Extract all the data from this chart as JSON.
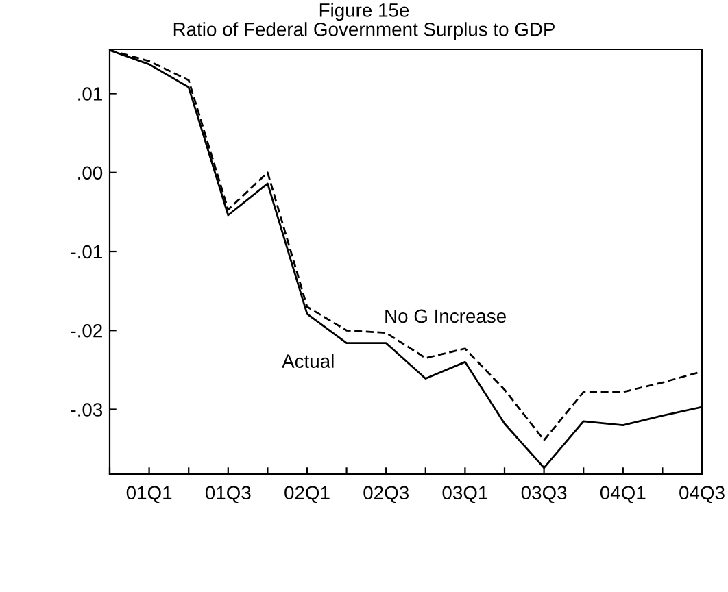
{
  "chart_data": {
    "type": "line",
    "title": "Figure 15e\nRatio of Federal Government Surplus to GDP",
    "categories": [
      null,
      "01Q1",
      null,
      "01Q3",
      null,
      "02Q1",
      null,
      "02Q3",
      null,
      "03Q1",
      null,
      "03Q3",
      null,
      "04Q1",
      null,
      "04Q3"
    ],
    "series": [
      {
        "name": "Actual",
        "color": "#000000",
        "line_style": "solid",
        "values": [
          0.0155,
          0.0137,
          0.0108,
          -0.0054,
          -0.0014,
          -0.0179,
          -0.0216,
          -0.0216,
          -0.0261,
          -0.024,
          -0.0318,
          -0.0374,
          -0.0315,
          -0.032,
          -0.0308,
          -0.0297
        ]
      },
      {
        "name": "No G Increase",
        "color": "#000000",
        "line_style": "dashed",
        "values": [
          0.0155,
          0.0141,
          0.0117,
          -0.0047,
          0.0,
          -0.017,
          -0.02,
          -0.0203,
          -0.0235,
          -0.0223,
          -0.0275,
          -0.0339,
          -0.0278,
          -0.0278,
          -0.0266,
          -0.0252
        ]
      }
    ],
    "ylim": [
      -0.0382,
      0.0156
    ],
    "yticks": [
      {
        "value": 0.01,
        "label": ".01"
      },
      {
        "value": 0.0,
        "label": ".00"
      },
      {
        "value": -0.01,
        "label": "-.01"
      },
      {
        "value": -0.02,
        "label": "-.02"
      },
      {
        "value": -0.03,
        "label": "-.03"
      }
    ],
    "grid": false,
    "legend": false,
    "marker": "none"
  }
}
